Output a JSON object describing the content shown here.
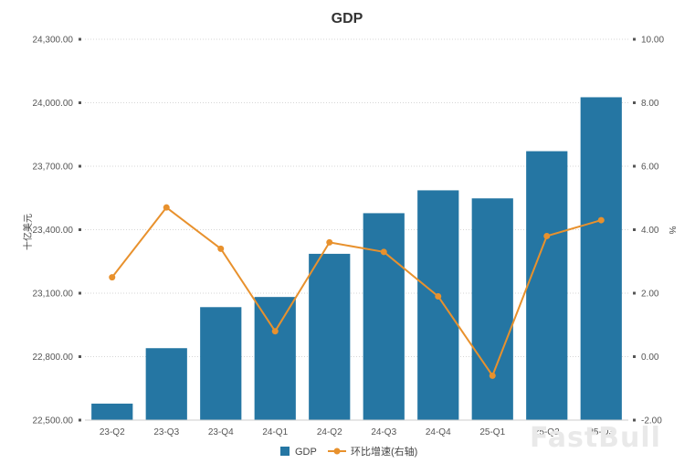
{
  "chart_data": {
    "type": "bar",
    "title": "GDP",
    "categories": [
      "23-Q2",
      "23-Q3",
      "23-Q4",
      "24-Q1",
      "24-Q2",
      "24-Q3",
      "24-Q4",
      "25-Q1",
      "25-Q2",
      "25-Q3"
    ],
    "series": [
      {
        "name": "GDP",
        "type": "bar",
        "axis": "left",
        "color": "#2576a3",
        "values": [
          22578,
          22840,
          23034,
          23082,
          23286,
          23478,
          23586,
          23548,
          23771,
          24026
        ]
      },
      {
        "name": "环比增速(右轴)",
        "type": "line",
        "axis": "right",
        "color": "#e8912d",
        "values": [
          2.5,
          4.7,
          3.4,
          0.8,
          3.6,
          3.3,
          1.9,
          -0.6,
          3.8,
          4.3
        ]
      }
    ],
    "ylabel": "十亿美元",
    "ylabel_right": "%",
    "ylim": [
      22500,
      24300
    ],
    "ylim_right": [
      -2,
      10
    ],
    "yticks": [
      "22,500.00",
      "22,800.00",
      "23,100.00",
      "23,400.00",
      "23,700.00",
      "24,000.00",
      "24,300.00"
    ],
    "yticks_right": [
      "-2.00",
      "0.00",
      "2.00",
      "4.00",
      "6.00",
      "8.00",
      "10.00"
    ],
    "grid": true,
    "legend_position": "bottom"
  },
  "watermark": "FastBull"
}
